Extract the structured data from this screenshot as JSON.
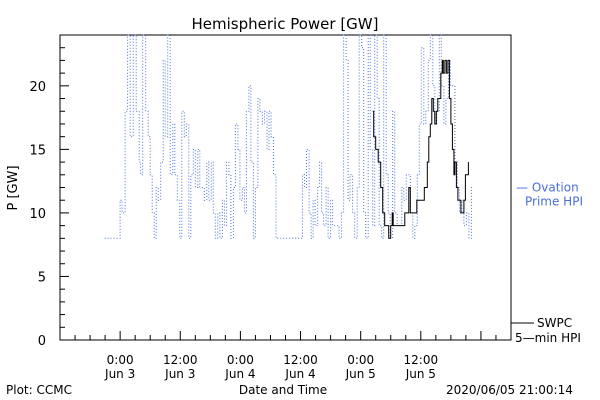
{
  "chart_data": {
    "type": "line",
    "title": "Hemispheric Power [GW]",
    "xlabel": "Date and Time",
    "ylabel": "P [GW]",
    "ylim": [
      0,
      24
    ],
    "xlim_hours": [
      -12,
      78
    ],
    "x_units": "hours since 2020-06-03 00:00 UT",
    "y_ticks": [
      0,
      5,
      10,
      15,
      20
    ],
    "x_ticks": [
      {
        "hour": 0,
        "time": "0:00",
        "date": "Jun 3"
      },
      {
        "hour": 12,
        "time": "12:00",
        "date": "Jun 3"
      },
      {
        "hour": 24,
        "time": "0:00",
        "date": "Jun 4"
      },
      {
        "hour": 36,
        "time": "12:00",
        "date": "Jun 4"
      },
      {
        "hour": 48,
        "time": "0:00",
        "date": "Jun 5"
      },
      {
        "hour": 60,
        "time": "12:00",
        "date": "Jun 5"
      }
    ],
    "series": [
      {
        "name": "Ovation Prime HPI",
        "label_lines": [
          "— Ovation",
          "Prime HPI"
        ],
        "color": "#4a6fd6",
        "style": "dotted",
        "points": [
          [
            -3.1,
            8
          ],
          [
            -1.5,
            8
          ],
          [
            -0.4,
            8
          ],
          [
            0.0,
            11
          ],
          [
            0.4,
            10
          ],
          [
            1.0,
            18
          ],
          [
            1.5,
            24
          ],
          [
            2.0,
            16
          ],
          [
            2.6,
            24
          ],
          [
            3.2,
            18
          ],
          [
            3.8,
            14
          ],
          [
            4.1,
            13
          ],
          [
            4.5,
            24
          ],
          [
            5.1,
            18
          ],
          [
            5.6,
            16
          ],
          [
            6.0,
            13
          ],
          [
            6.4,
            10
          ],
          [
            6.8,
            8
          ],
          [
            7.2,
            12
          ],
          [
            7.6,
            11
          ],
          [
            8.1,
            14
          ],
          [
            8.6,
            22
          ],
          [
            9.0,
            16
          ],
          [
            9.5,
            24
          ],
          [
            10.0,
            13
          ],
          [
            10.5,
            17
          ],
          [
            10.9,
            13
          ],
          [
            11.4,
            11
          ],
          [
            11.9,
            8
          ],
          [
            12.3,
            18
          ],
          [
            12.8,
            16
          ],
          [
            13.2,
            17
          ],
          [
            13.7,
            8
          ],
          [
            14.1,
            13
          ],
          [
            14.6,
            15
          ],
          [
            15.0,
            12
          ],
          [
            15.5,
            15
          ],
          [
            15.9,
            12
          ],
          [
            16.4,
            12
          ],
          [
            16.8,
            11
          ],
          [
            17.3,
            14
          ],
          [
            17.7,
            11
          ],
          [
            18.2,
            14
          ],
          [
            18.6,
            10
          ],
          [
            19.0,
            8
          ],
          [
            19.5,
            10
          ],
          [
            19.9,
            8
          ],
          [
            20.4,
            11
          ],
          [
            20.8,
            9
          ],
          [
            21.2,
            14
          ],
          [
            21.7,
            13
          ],
          [
            22.1,
            8
          ],
          [
            22.6,
            12
          ],
          [
            23.0,
            17
          ],
          [
            23.5,
            15
          ],
          [
            23.9,
            11
          ],
          [
            24.4,
            12
          ],
          [
            24.8,
            10
          ],
          [
            25.2,
            18
          ],
          [
            25.7,
            20
          ],
          [
            26.1,
            14
          ],
          [
            26.6,
            8
          ],
          [
            27.0,
            12
          ],
          [
            27.5,
            19
          ],
          [
            27.9,
            18
          ],
          [
            28.4,
            17
          ],
          [
            28.8,
            18
          ],
          [
            29.3,
            15
          ],
          [
            29.7,
            18
          ],
          [
            30.1,
            16
          ],
          [
            30.6,
            13
          ],
          [
            31.1,
            8
          ],
          [
            32.0,
            8
          ],
          [
            33.5,
            8
          ],
          [
            34.5,
            8
          ],
          [
            35.5,
            8
          ],
          [
            36.0,
            8
          ],
          [
            36.4,
            13
          ],
          [
            36.8,
            12
          ],
          [
            37.2,
            15
          ],
          [
            37.7,
            10
          ],
          [
            38.1,
            8
          ],
          [
            38.5,
            11
          ],
          [
            38.9,
            9
          ],
          [
            39.4,
            12
          ],
          [
            39.8,
            14
          ],
          [
            40.2,
            10
          ],
          [
            40.6,
            9
          ],
          [
            41.1,
            12
          ],
          [
            41.5,
            8
          ],
          [
            42.0,
            11
          ],
          [
            42.4,
            9
          ],
          [
            42.8,
            9
          ],
          [
            43.3,
            9
          ],
          [
            43.7,
            8
          ],
          [
            44.2,
            10
          ],
          [
            44.6,
            24
          ],
          [
            45.1,
            22
          ],
          [
            45.5,
            11
          ],
          [
            45.9,
            13
          ],
          [
            46.4,
            10
          ],
          [
            46.8,
            8
          ],
          [
            47.3,
            12
          ],
          [
            47.7,
            24
          ],
          [
            48.2,
            23
          ],
          [
            48.6,
            10
          ],
          [
            49.0,
            8
          ],
          [
            49.5,
            24
          ],
          [
            49.9,
            15
          ],
          [
            50.4,
            9
          ],
          [
            50.8,
            24
          ],
          [
            51.3,
            19
          ],
          [
            51.7,
            9
          ],
          [
            52.2,
            8
          ],
          [
            52.6,
            24
          ],
          [
            53.1,
            13
          ],
          [
            53.5,
            10
          ],
          [
            53.9,
            8
          ],
          [
            54.4,
            18
          ],
          [
            54.8,
            10
          ],
          [
            55.3,
            9
          ],
          [
            55.7,
            9
          ],
          [
            56.2,
            12
          ],
          [
            56.6,
            11
          ],
          [
            57.1,
            13
          ],
          [
            57.5,
            13
          ],
          [
            57.9,
            10
          ],
          [
            58.4,
            8
          ],
          [
            58.8,
            9
          ],
          [
            59.3,
            13
          ],
          [
            59.7,
            17
          ],
          [
            60.1,
            23
          ],
          [
            60.6,
            17
          ],
          [
            61.0,
            18
          ],
          [
            61.5,
            22
          ],
          [
            61.9,
            24
          ],
          [
            62.4,
            20
          ],
          [
            62.8,
            17
          ],
          [
            63.2,
            18
          ],
          [
            63.7,
            24
          ],
          [
            64.1,
            20
          ],
          [
            64.6,
            17
          ],
          [
            65.0,
            19
          ],
          [
            65.5,
            22
          ],
          [
            65.9,
            20
          ],
          [
            66.4,
            20
          ],
          [
            66.8,
            14
          ],
          [
            67.3,
            12
          ],
          [
            67.7,
            10
          ],
          [
            68.2,
            11
          ],
          [
            68.6,
            9
          ],
          [
            69.1,
            10
          ],
          [
            69.6,
            8
          ],
          [
            70.1,
            12
          ],
          [
            70.5,
            12
          ]
        ]
      },
      {
        "name": "SWPC 5-min HPI",
        "label_lines": [
          "SWPC",
          "5—min HPI"
        ],
        "color": "#000000",
        "style": "solid",
        "points": [
          [
            50.4,
            18
          ],
          [
            50.6,
            16
          ],
          [
            51.0,
            15
          ],
          [
            51.5,
            14
          ],
          [
            52.0,
            12
          ],
          [
            52.4,
            10
          ],
          [
            52.8,
            9
          ],
          [
            53.2,
            9
          ],
          [
            53.6,
            8
          ],
          [
            54.0,
            9
          ],
          [
            54.3,
            10
          ],
          [
            54.5,
            9
          ],
          [
            55.0,
            9
          ],
          [
            55.5,
            9
          ],
          [
            56.0,
            9
          ],
          [
            56.4,
            9
          ],
          [
            56.8,
            10
          ],
          [
            57.2,
            10
          ],
          [
            57.6,
            12
          ],
          [
            57.9,
            10
          ],
          [
            58.3,
            10
          ],
          [
            58.8,
            10
          ],
          [
            59.2,
            11
          ],
          [
            59.6,
            11
          ],
          [
            60.0,
            11
          ],
          [
            60.4,
            11
          ],
          [
            60.7,
            12
          ],
          [
            61.0,
            12
          ],
          [
            61.3,
            14
          ],
          [
            61.6,
            16
          ],
          [
            61.9,
            17
          ],
          [
            62.2,
            19
          ],
          [
            62.5,
            18
          ],
          [
            62.8,
            17
          ],
          [
            63.1,
            18
          ],
          [
            63.4,
            19
          ],
          [
            63.7,
            19
          ],
          [
            64.0,
            21
          ],
          [
            64.3,
            22
          ],
          [
            64.5,
            21
          ],
          [
            64.8,
            22
          ],
          [
            65.1,
            21
          ],
          [
            65.4,
            22
          ],
          [
            65.7,
            19
          ],
          [
            66.0,
            17
          ],
          [
            66.3,
            15
          ],
          [
            66.6,
            13
          ],
          [
            66.8,
            14
          ],
          [
            67.1,
            12
          ],
          [
            67.4,
            11
          ],
          [
            67.7,
            11
          ],
          [
            68.0,
            10
          ],
          [
            68.3,
            10
          ],
          [
            68.6,
            11
          ],
          [
            68.9,
            13
          ],
          [
            69.2,
            13
          ],
          [
            69.5,
            14
          ]
        ]
      }
    ],
    "annotations": {
      "bottom_left": "Plot: CCMC",
      "bottom_right": "2020/06/05 21:00:14"
    }
  }
}
